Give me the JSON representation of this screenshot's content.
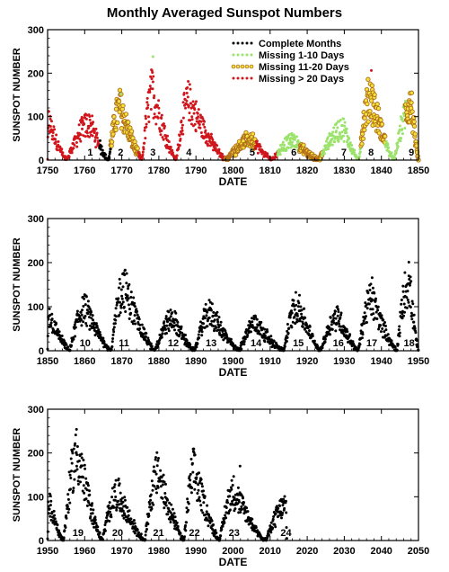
{
  "figure": {
    "title": "Monthly Averaged Sunspot Numbers"
  },
  "colors": {
    "complete": "#000000",
    "missing_1_10": "#9be36b",
    "missing_11_20_fill": "#f2e33a",
    "missing_11_20_edge": "#b06c1a",
    "missing_20": "#d0161c"
  },
  "chart_data": [
    {
      "type": "scatter",
      "title": "",
      "xlabel": "DATE",
      "ylabel": "SUNSPOT NUMBER",
      "xlim": [
        1750,
        1850
      ],
      "ylim": [
        0,
        300
      ],
      "x_ticks": [
        1750,
        1760,
        1770,
        1780,
        1790,
        1800,
        1810,
        1820,
        1830,
        1840,
        1850
      ],
      "y_ticks": [
        0,
        100,
        200,
        300
      ],
      "legend": {
        "position": "top-right",
        "entries": [
          {
            "label": "Complete Months",
            "key": "complete"
          },
          {
            "label": "Missing 1-10 Days",
            "key": "missing_1_10"
          },
          {
            "label": "Missing 11-20 Days",
            "key": "missing_11_20"
          },
          {
            "label": "Missing > 20 Days",
            "key": "missing_20"
          }
        ]
      },
      "cycles": [
        {
          "label": "1",
          "year": 1761.5
        },
        {
          "label": "2",
          "year": 1769.7
        },
        {
          "label": "3",
          "year": 1778.4
        },
        {
          "label": "4",
          "year": 1788.1
        },
        {
          "label": "5",
          "year": 1805.2
        },
        {
          "label": "6",
          "year": 1816.4
        },
        {
          "label": "7",
          "year": 1829.9
        },
        {
          "label": "8",
          "year": 1837.2
        },
        {
          "label": "9",
          "year": 1848.1
        }
      ],
      "series_segments": [
        {
          "key": "missing_20",
          "from": 1750.0,
          "to": 1764.0
        },
        {
          "key": "complete",
          "from": 1764.0,
          "to": 1767.0
        },
        {
          "key": "missing_11_20",
          "from": 1767.0,
          "to": 1774.5
        },
        {
          "key": "missing_20",
          "from": 1774.5,
          "to": 1798.0
        },
        {
          "key": "missing_11_20",
          "from": 1798.0,
          "to": 1806.0
        },
        {
          "key": "missing_20",
          "from": 1806.0,
          "to": 1812.0
        },
        {
          "key": "missing_1_10",
          "from": 1812.0,
          "to": 1818.0
        },
        {
          "key": "missing_11_20",
          "from": 1818.0,
          "to": 1824.0
        },
        {
          "key": "missing_1_10",
          "from": 1824.0,
          "to": 1834.5
        },
        {
          "key": "missing_11_20",
          "from": 1834.5,
          "to": 1841.0
        },
        {
          "key": "missing_1_10",
          "from": 1841.0,
          "to": 1846.5
        },
        {
          "key": "missing_11_20",
          "from": 1846.5,
          "to": 1850.0
        }
      ],
      "cycle_curve": [
        {
          "min": 1750.0,
          "max": 1750.3,
          "end": 1755.2,
          "peak": 92
        },
        {
          "min": 1755.2,
          "max": 1761.5,
          "end": 1766.5,
          "peak": 86
        },
        {
          "min": 1766.5,
          "max": 1769.7,
          "end": 1775.5,
          "peak": 125
        },
        {
          "min": 1775.5,
          "max": 1778.4,
          "end": 1784.7,
          "peak": 162
        },
        {
          "min": 1784.7,
          "max": 1788.1,
          "end": 1798.3,
          "peak": 138
        },
        {
          "min": 1798.3,
          "max": 1805.2,
          "end": 1810.6,
          "peak": 48
        },
        {
          "min": 1810.6,
          "max": 1816.4,
          "end": 1823.3,
          "peak": 46
        },
        {
          "min": 1823.3,
          "max": 1829.9,
          "end": 1833.9,
          "peak": 75
        },
        {
          "min": 1833.9,
          "max": 1837.2,
          "end": 1843.5,
          "peak": 150
        },
        {
          "min": 1843.5,
          "max": 1848.1,
          "end": 1850.0,
          "peak": 130
        }
      ],
      "peak_points": [
        {
          "x": 1778.4,
          "y": 238,
          "key": "missing_1_10"
        },
        {
          "x": 1837.3,
          "y": 206,
          "key": "missing_20"
        },
        {
          "x": 1769.8,
          "y": 152,
          "key": "missing_1_10"
        }
      ]
    },
    {
      "type": "scatter",
      "title": "",
      "xlabel": "DATE",
      "ylabel": "SUNSPOT NUMBER",
      "xlim": [
        1850,
        1950
      ],
      "ylim": [
        0,
        300
      ],
      "x_ticks": [
        1850,
        1860,
        1870,
        1880,
        1890,
        1900,
        1910,
        1920,
        1930,
        1940,
        1950
      ],
      "y_ticks": [
        0,
        100,
        200,
        300
      ],
      "cycles": [
        {
          "label": "10",
          "year": 1860.1
        },
        {
          "label": "11",
          "year": 1870.6
        },
        {
          "label": "12",
          "year": 1883.9
        },
        {
          "label": "13",
          "year": 1894.1
        },
        {
          "label": "14",
          "year": 1906.2
        },
        {
          "label": "15",
          "year": 1917.6
        },
        {
          "label": "16",
          "year": 1928.4
        },
        {
          "label": "17",
          "year": 1937.4
        },
        {
          "label": "18",
          "year": 1947.5
        }
      ],
      "series_segments": [
        {
          "key": "complete",
          "from": 1850.0,
          "to": 1950.0
        }
      ],
      "cycle_curve": [
        {
          "min": 1850.0,
          "max": 1850.3,
          "end": 1856.0,
          "peak": 85
        },
        {
          "min": 1856.0,
          "max": 1860.1,
          "end": 1867.2,
          "peak": 100
        },
        {
          "min": 1867.2,
          "max": 1870.6,
          "end": 1878.9,
          "peak": 150
        },
        {
          "min": 1878.9,
          "max": 1883.9,
          "end": 1889.6,
          "peak": 75
        },
        {
          "min": 1889.6,
          "max": 1894.1,
          "end": 1901.7,
          "peak": 88
        },
        {
          "min": 1901.7,
          "max": 1906.2,
          "end": 1913.6,
          "peak": 65
        },
        {
          "min": 1913.6,
          "max": 1917.6,
          "end": 1923.6,
          "peak": 106
        },
        {
          "min": 1923.6,
          "max": 1928.4,
          "end": 1933.8,
          "peak": 80
        },
        {
          "min": 1933.8,
          "max": 1937.4,
          "end": 1944.2,
          "peak": 120
        },
        {
          "min": 1944.2,
          "max": 1947.5,
          "end": 1950.0,
          "peak": 160
        }
      ],
      "peak_points": [
        {
          "x": 1870.5,
          "y": 176,
          "key": "complete"
        },
        {
          "x": 1947.4,
          "y": 201,
          "key": "complete"
        },
        {
          "x": 1937.5,
          "y": 166,
          "key": "complete"
        }
      ]
    },
    {
      "type": "scatter",
      "title": "",
      "xlabel": "DATE",
      "ylabel": "SUNSPOT NUMBER",
      "xlim": [
        1950,
        2050
      ],
      "ylim": [
        0,
        300
      ],
      "x_ticks": [
        1950,
        1960,
        1970,
        1980,
        1990,
        2000,
        2010,
        2020,
        2030,
        2040,
        2050
      ],
      "y_ticks": [
        0,
        100,
        200,
        300
      ],
      "cycles": [
        {
          "label": "19",
          "year": 1958.2
        },
        {
          "label": "20",
          "year": 1968.9
        },
        {
          "label": "21",
          "year": 1979.9
        },
        {
          "label": "22",
          "year": 1989.6
        },
        {
          "label": "23",
          "year": 2000.3
        },
        {
          "label": "24",
          "year": 2014.3
        }
      ],
      "series_segments": [
        {
          "key": "complete",
          "from": 1950.0,
          "to": 2014.5
        }
      ],
      "cycle_curve": [
        {
          "min": 1950.0,
          "max": 1950.3,
          "end": 1954.3,
          "peak": 90
        },
        {
          "min": 1954.3,
          "max": 1958.2,
          "end": 1964.8,
          "peak": 200
        },
        {
          "min": 1964.8,
          "max": 1968.9,
          "end": 1976.2,
          "peak": 110
        },
        {
          "min": 1976.2,
          "max": 1979.9,
          "end": 1986.8,
          "peak": 155
        },
        {
          "min": 1986.8,
          "max": 1989.6,
          "end": 1996.4,
          "peak": 160
        },
        {
          "min": 1996.4,
          "max": 2000.3,
          "end": 2008.9,
          "peak": 115
        },
        {
          "min": 2008.9,
          "max": 2014.3,
          "end": 2014.5,
          "peak": 80
        }
      ],
      "peak_points": [
        {
          "x": 1957.8,
          "y": 254,
          "key": "complete"
        },
        {
          "x": 1979.9,
          "y": 188,
          "key": "complete"
        },
        {
          "x": 1989.5,
          "y": 201,
          "key": "complete"
        },
        {
          "x": 2001.9,
          "y": 170,
          "key": "complete"
        }
      ]
    }
  ]
}
